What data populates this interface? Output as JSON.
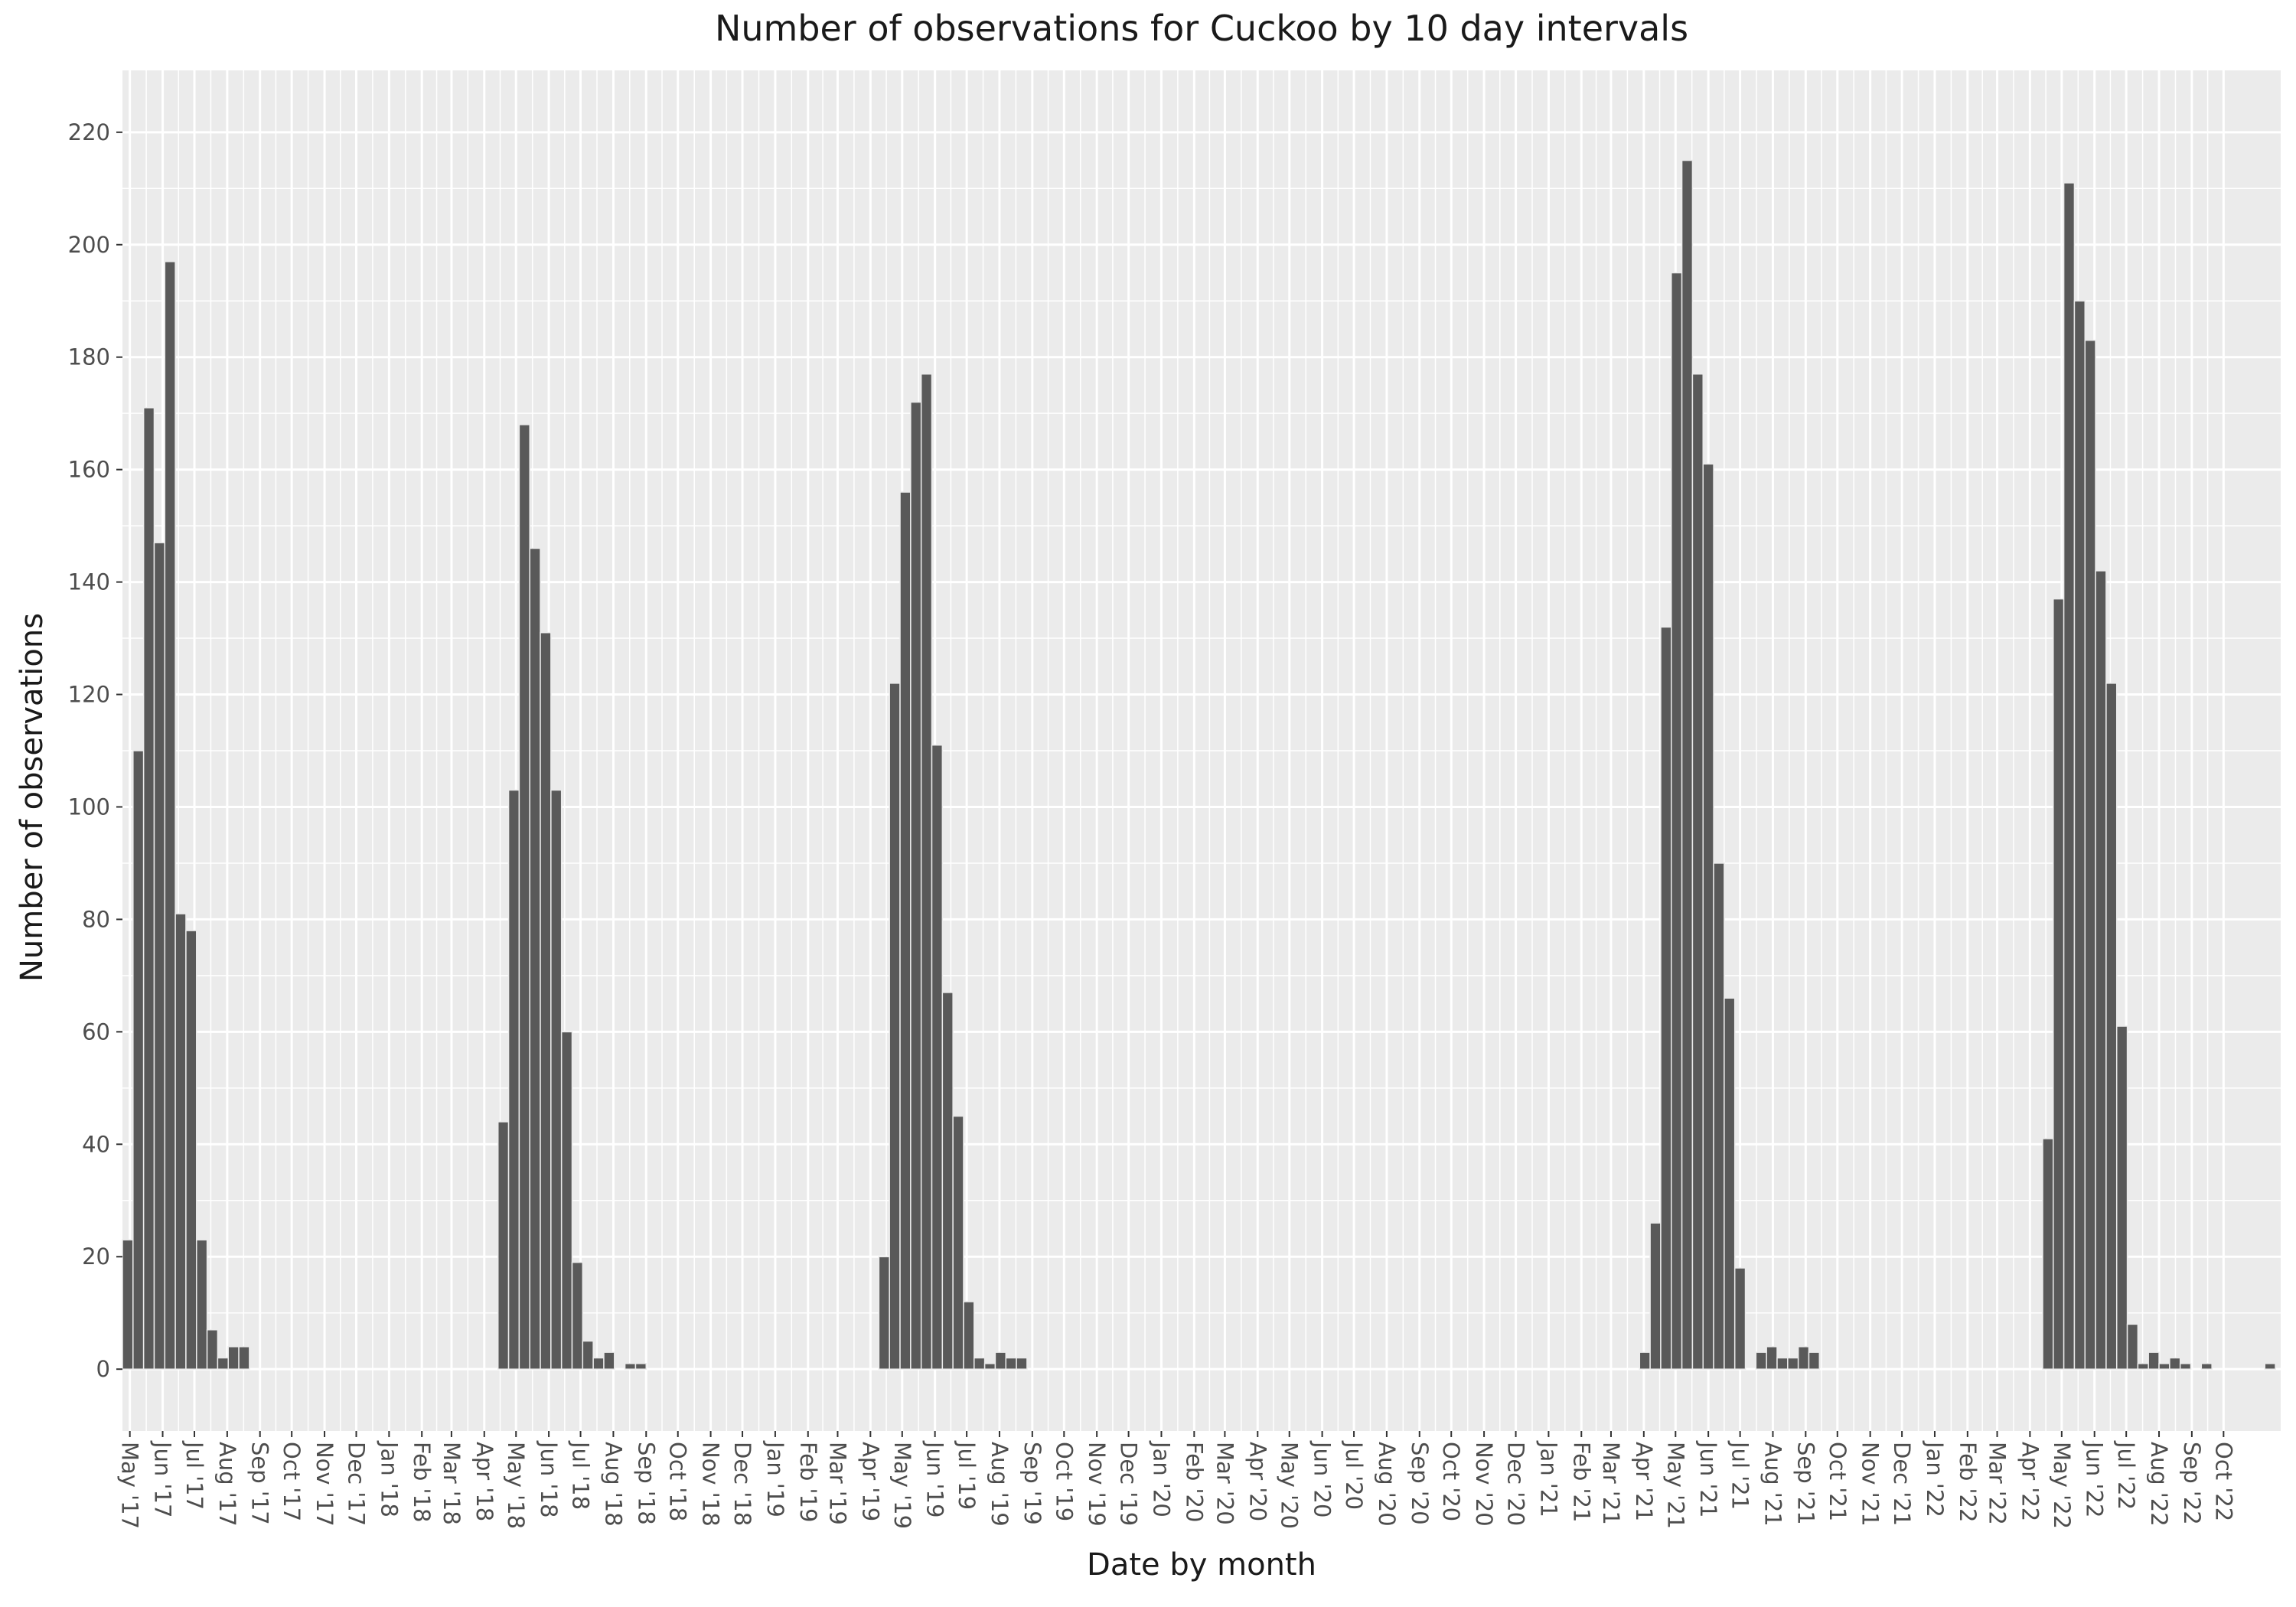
{
  "chart_data": {
    "type": "bar",
    "title": "Number of observations for Cuckoo by 10 day intervals",
    "xlabel": "Date by month",
    "ylabel": "Number of observations",
    "ylim": [
      -11,
      231
    ],
    "yticks": [
      0,
      20,
      40,
      60,
      80,
      100,
      120,
      140,
      160,
      180,
      200,
      220
    ],
    "xlim": [
      "2017-04-24",
      "2022-11-24"
    ],
    "xticks": [
      {
        "date": "2017-05-01",
        "label": "May '17"
      },
      {
        "date": "2017-06-01",
        "label": "Jun '17"
      },
      {
        "date": "2017-07-01",
        "label": "Jul '17"
      },
      {
        "date": "2017-08-01",
        "label": "Aug '17"
      },
      {
        "date": "2017-09-01",
        "label": "Sep '17"
      },
      {
        "date": "2017-10-01",
        "label": "Oct '17"
      },
      {
        "date": "2017-11-01",
        "label": "Nov '17"
      },
      {
        "date": "2017-12-01",
        "label": "Dec '17"
      },
      {
        "date": "2018-01-01",
        "label": "Jan '18"
      },
      {
        "date": "2018-02-01",
        "label": "Feb '18"
      },
      {
        "date": "2018-03-01",
        "label": "Mar '18"
      },
      {
        "date": "2018-04-01",
        "label": "Apr '18"
      },
      {
        "date": "2018-05-01",
        "label": "May '18"
      },
      {
        "date": "2018-06-01",
        "label": "Jun '18"
      },
      {
        "date": "2018-07-01",
        "label": "Jul '18"
      },
      {
        "date": "2018-08-01",
        "label": "Aug '18"
      },
      {
        "date": "2018-09-01",
        "label": "Sep '18"
      },
      {
        "date": "2018-10-01",
        "label": "Oct '18"
      },
      {
        "date": "2018-11-01",
        "label": "Nov '18"
      },
      {
        "date": "2018-12-01",
        "label": "Dec '18"
      },
      {
        "date": "2019-01-01",
        "label": "Jan '19"
      },
      {
        "date": "2019-02-01",
        "label": "Feb '19"
      },
      {
        "date": "2019-03-01",
        "label": "Mar '19"
      },
      {
        "date": "2019-04-01",
        "label": "Apr '19"
      },
      {
        "date": "2019-05-01",
        "label": "May '19"
      },
      {
        "date": "2019-06-01",
        "label": "Jun '19"
      },
      {
        "date": "2019-07-01",
        "label": "Jul '19"
      },
      {
        "date": "2019-08-01",
        "label": "Aug '19"
      },
      {
        "date": "2019-09-01",
        "label": "Sep '19"
      },
      {
        "date": "2019-10-01",
        "label": "Oct '19"
      },
      {
        "date": "2019-11-01",
        "label": "Nov '19"
      },
      {
        "date": "2019-12-01",
        "label": "Dec '19"
      },
      {
        "date": "2020-01-01",
        "label": "Jan '20"
      },
      {
        "date": "2020-02-01",
        "label": "Feb '20"
      },
      {
        "date": "2020-03-01",
        "label": "Mar '20"
      },
      {
        "date": "2020-04-01",
        "label": "Apr '20"
      },
      {
        "date": "2020-05-01",
        "label": "May '20"
      },
      {
        "date": "2020-06-01",
        "label": "Jun '20"
      },
      {
        "date": "2020-07-01",
        "label": "Jul '20"
      },
      {
        "date": "2020-08-01",
        "label": "Aug '20"
      },
      {
        "date": "2020-09-01",
        "label": "Sep '20"
      },
      {
        "date": "2020-10-01",
        "label": "Oct '20"
      },
      {
        "date": "2020-11-01",
        "label": "Nov '20"
      },
      {
        "date": "2020-12-01",
        "label": "Dec '20"
      },
      {
        "date": "2021-01-01",
        "label": "Jan '21"
      },
      {
        "date": "2021-02-01",
        "label": "Feb '21"
      },
      {
        "date": "2021-03-01",
        "label": "Mar '21"
      },
      {
        "date": "2021-04-01",
        "label": "Apr '21"
      },
      {
        "date": "2021-05-01",
        "label": "May '21"
      },
      {
        "date": "2021-06-01",
        "label": "Jun '21"
      },
      {
        "date": "2021-07-01",
        "label": "Jul '21"
      },
      {
        "date": "2021-08-01",
        "label": "Aug '21"
      },
      {
        "date": "2021-09-01",
        "label": "Sep '21"
      },
      {
        "date": "2021-10-01",
        "label": "Oct '21"
      },
      {
        "date": "2021-11-01",
        "label": "Nov '21"
      },
      {
        "date": "2021-12-01",
        "label": "Dec '21"
      },
      {
        "date": "2022-01-01",
        "label": "Jan '22"
      },
      {
        "date": "2022-02-01",
        "label": "Feb '22"
      },
      {
        "date": "2022-03-01",
        "label": "Mar '22"
      },
      {
        "date": "2022-04-01",
        "label": "Apr '22"
      },
      {
        "date": "2022-05-01",
        "label": "May '22"
      },
      {
        "date": "2022-06-01",
        "label": "Jun '22"
      },
      {
        "date": "2022-07-01",
        "label": "Jul '22"
      },
      {
        "date": "2022-08-01",
        "label": "Aug '22"
      },
      {
        "date": "2022-09-01",
        "label": "Sep '22"
      },
      {
        "date": "2022-10-01",
        "label": "Oct '22"
      }
    ],
    "bars": [
      {
        "date": "2017-04-29",
        "value": 23
      },
      {
        "date": "2017-05-09",
        "value": 110
      },
      {
        "date": "2017-05-19",
        "value": 171
      },
      {
        "date": "2017-05-29",
        "value": 147
      },
      {
        "date": "2017-06-08",
        "value": 197
      },
      {
        "date": "2017-06-18",
        "value": 81
      },
      {
        "date": "2017-06-28",
        "value": 78
      },
      {
        "date": "2017-07-08",
        "value": 23
      },
      {
        "date": "2017-07-18",
        "value": 7
      },
      {
        "date": "2017-07-28",
        "value": 2
      },
      {
        "date": "2017-08-07",
        "value": 4
      },
      {
        "date": "2017-08-17",
        "value": 4
      },
      {
        "date": "2018-04-19",
        "value": 44
      },
      {
        "date": "2018-04-29",
        "value": 103
      },
      {
        "date": "2018-05-09",
        "value": 168
      },
      {
        "date": "2018-05-19",
        "value": 146
      },
      {
        "date": "2018-05-29",
        "value": 131
      },
      {
        "date": "2018-06-08",
        "value": 103
      },
      {
        "date": "2018-06-18",
        "value": 60
      },
      {
        "date": "2018-06-28",
        "value": 19
      },
      {
        "date": "2018-07-08",
        "value": 5
      },
      {
        "date": "2018-07-18",
        "value": 2
      },
      {
        "date": "2018-07-28",
        "value": 3
      },
      {
        "date": "2018-08-17",
        "value": 1
      },
      {
        "date": "2018-08-27",
        "value": 1
      },
      {
        "date": "2019-04-14",
        "value": 20
      },
      {
        "date": "2019-04-24",
        "value": 122
      },
      {
        "date": "2019-05-04",
        "value": 156
      },
      {
        "date": "2019-05-14",
        "value": 172
      },
      {
        "date": "2019-05-24",
        "value": 177
      },
      {
        "date": "2019-06-03",
        "value": 111
      },
      {
        "date": "2019-06-13",
        "value": 67
      },
      {
        "date": "2019-06-23",
        "value": 45
      },
      {
        "date": "2019-07-03",
        "value": 12
      },
      {
        "date": "2019-07-13",
        "value": 2
      },
      {
        "date": "2019-07-23",
        "value": 1
      },
      {
        "date": "2019-08-02",
        "value": 3
      },
      {
        "date": "2019-08-12",
        "value": 2
      },
      {
        "date": "2019-08-22",
        "value": 2
      },
      {
        "date": "2021-04-02",
        "value": 3
      },
      {
        "date": "2021-04-12",
        "value": 26
      },
      {
        "date": "2021-04-22",
        "value": 132
      },
      {
        "date": "2021-05-02",
        "value": 195
      },
      {
        "date": "2021-05-12",
        "value": 215
      },
      {
        "date": "2021-05-22",
        "value": 177
      },
      {
        "date": "2021-06-01",
        "value": 161
      },
      {
        "date": "2021-06-11",
        "value": 90
      },
      {
        "date": "2021-06-21",
        "value": 66
      },
      {
        "date": "2021-07-01",
        "value": 18
      },
      {
        "date": "2021-07-21",
        "value": 3
      },
      {
        "date": "2021-07-31",
        "value": 4
      },
      {
        "date": "2021-08-10",
        "value": 2
      },
      {
        "date": "2021-08-20",
        "value": 2
      },
      {
        "date": "2021-08-30",
        "value": 4
      },
      {
        "date": "2021-09-09",
        "value": 3
      },
      {
        "date": "2022-04-18",
        "value": 41
      },
      {
        "date": "2022-04-28",
        "value": 137
      },
      {
        "date": "2022-05-08",
        "value": 211
      },
      {
        "date": "2022-05-18",
        "value": 190
      },
      {
        "date": "2022-05-28",
        "value": 183
      },
      {
        "date": "2022-06-07",
        "value": 142
      },
      {
        "date": "2022-06-17",
        "value": 122
      },
      {
        "date": "2022-06-27",
        "value": 61
      },
      {
        "date": "2022-07-07",
        "value": 8
      },
      {
        "date": "2022-07-17",
        "value": 1
      },
      {
        "date": "2022-07-27",
        "value": 3
      },
      {
        "date": "2022-08-06",
        "value": 1
      },
      {
        "date": "2022-08-16",
        "value": 2
      },
      {
        "date": "2022-08-26",
        "value": 1
      },
      {
        "date": "2022-09-15",
        "value": 1
      },
      {
        "date": "2022-11-14",
        "value": 1
      }
    ],
    "bar_width_days": 10,
    "colors": {
      "bar": "#595959",
      "panel_background": "#ebebeb",
      "grid": "#ffffff",
      "tick_label": "#4d4d4d",
      "tick_mark": "#333333"
    },
    "grid": true,
    "legend": "none"
  }
}
